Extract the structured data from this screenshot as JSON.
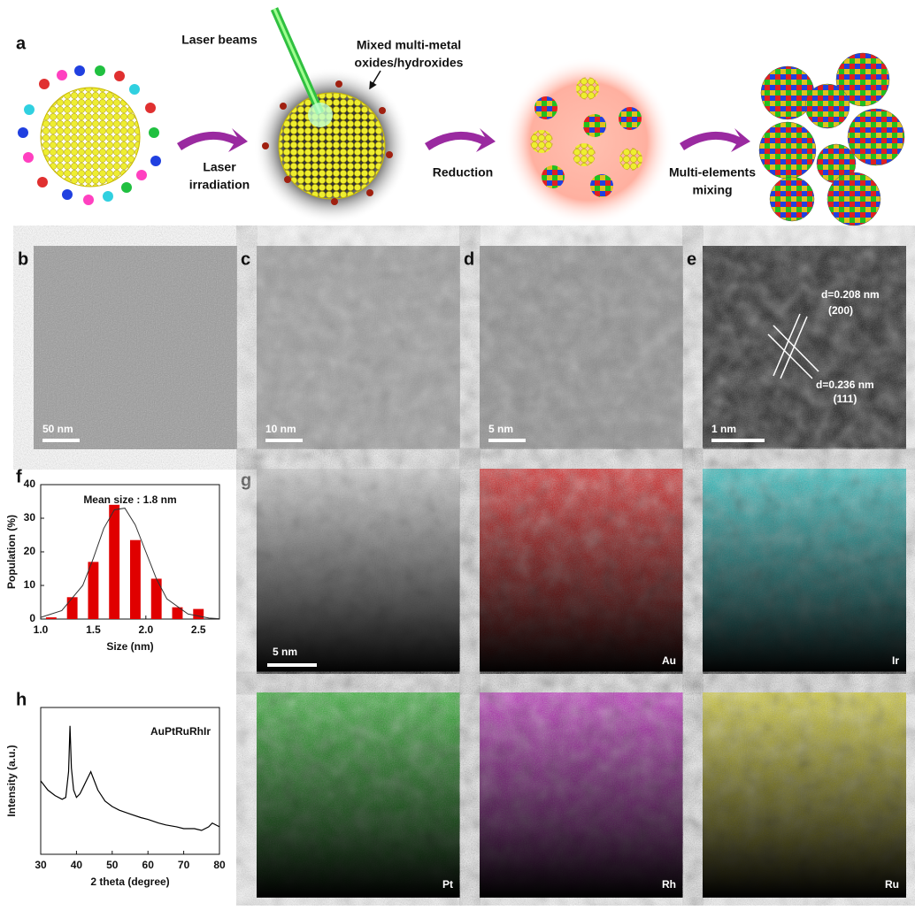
{
  "panel_a": {
    "label": "a",
    "laser_beams": "Laser beams",
    "oxides": [
      "Mixed multi-metal",
      "oxides/hydroxides"
    ],
    "step1": [
      "Laser",
      "irradiation"
    ],
    "step2": "Reduction",
    "step3": [
      "Multi-elements",
      "mixing"
    ]
  },
  "panels": [
    {
      "label": "b",
      "scale": "50 nm"
    },
    {
      "label": "c",
      "scale": "10 nm"
    },
    {
      "label": "d",
      "scale": "5 nm"
    },
    {
      "label": "e",
      "scale": "1 nm",
      "annotations": [
        "d=0.208 nm",
        "(200)",
        "d=0.236 nm",
        "(111)"
      ]
    }
  ],
  "panel_g": {
    "label": "g",
    "scale": "5 nm",
    "elements": [
      {
        "name": "Au",
        "color": "#e01010"
      },
      {
        "name": "Ir",
        "color": "#20c8c8"
      },
      {
        "name": "Pt",
        "color": "#20b020"
      },
      {
        "name": "Rh",
        "color": "#c020c0"
      },
      {
        "name": "Ru",
        "color": "#d8d020"
      }
    ]
  },
  "chart_data": [
    {
      "type": "bar",
      "panel": "f",
      "annotation": "Mean size : 1.8 nm",
      "xlabel": "Size (nm)",
      "ylabel": "Population (%)",
      "x": [
        1.1,
        1.3,
        1.5,
        1.7,
        1.9,
        2.1,
        2.3,
        2.5
      ],
      "values": [
        0.5,
        6.5,
        17,
        34,
        23.5,
        12,
        3.5,
        3
      ],
      "color": "#e00000",
      "fit": {
        "x": [
          1.0,
          1.2,
          1.4,
          1.5,
          1.6,
          1.7,
          1.8,
          1.9,
          2.0,
          2.1,
          2.2,
          2.4,
          2.6,
          2.7
        ],
        "values": [
          0.5,
          2.5,
          10,
          18,
          27,
          32.5,
          33,
          28,
          20,
          12,
          6,
          1.5,
          0.3,
          0.1
        ]
      },
      "xlim": [
        1.0,
        2.7
      ],
      "ylim": [
        0,
        40
      ],
      "xticks": [
        {
          "value": 1,
          "label": "1.0"
        },
        {
          "value": 1.5,
          "label": "1.5"
        },
        {
          "value": 2,
          "label": "2.0"
        },
        {
          "value": 2.5,
          "label": "2.5"
        }
      ],
      "yticks": [
        0,
        10,
        20,
        30,
        40
      ]
    },
    {
      "type": "line",
      "panel": "h",
      "annotation": "AuPtRuRhIr",
      "xlabel": "2 theta (degree)",
      "ylabel": "Intensity (a.u.)",
      "x": [
        30,
        32,
        34,
        36,
        37,
        37.8,
        38.2,
        38.6,
        39.2,
        40,
        41,
        42,
        43,
        44,
        45,
        46,
        48,
        50,
        52,
        55,
        58,
        60,
        63,
        65,
        68,
        70,
        73,
        75,
        77,
        78,
        80
      ],
      "values": [
        55,
        50,
        47,
        45,
        46,
        60,
        85,
        62,
        50,
        46,
        48,
        52,
        56,
        60,
        55,
        50,
        44,
        41,
        39,
        37,
        35,
        34,
        32,
        31,
        30,
        29,
        29,
        28,
        30,
        32,
        30
      ],
      "color": "#000000",
      "xlim": [
        30,
        80
      ],
      "ylim": [
        15,
        95
      ],
      "xticks": [
        30,
        40,
        50,
        60,
        70,
        80
      ]
    }
  ]
}
